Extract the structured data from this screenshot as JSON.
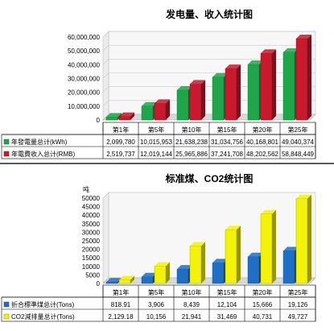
{
  "chart_data": [
    {
      "type": "bar",
      "title": "发电量、收入统计图",
      "categories": [
        "第1年",
        "第5年",
        "第10年",
        "第15年",
        "第20年",
        "第25年"
      ],
      "ylim": [
        0,
        60000000
      ],
      "yticks": [
        "0",
        "10,000,000",
        "20,000,000",
        "30,000,000",
        "40,000,000",
        "50,000,000",
        "60,000,000"
      ],
      "grid": true,
      "legend": "table-left",
      "series": [
        {
          "name": "年發電量总计(kWh)",
          "color": "#1fa64a",
          "values": [
            2099780,
            10015953,
            21638238,
            31034756,
            40168801,
            49040374
          ],
          "labels": [
            "2,099,780",
            "10,015,953",
            "21,638,238",
            "31,034,756",
            "40,168,801",
            "49,040,374"
          ]
        },
        {
          "name": "年電費收入总计(RMB)",
          "color": "#c8192e",
          "values": [
            2519737,
            12019144,
            25965886,
            37241708,
            48202562,
            58848449
          ],
          "labels": [
            "2,519,737",
            "12,019,144",
            "25,965,886",
            "37,241,708",
            "48,202,562",
            "58,848,449"
          ]
        }
      ]
    },
    {
      "type": "bar",
      "title": "标准煤、CO2统计图",
      "ylabel": "吨",
      "categories": [
        "第1年",
        "第5年",
        "第10年",
        "第15年",
        "第20年",
        "第25年"
      ],
      "ylim": [
        0,
        50000
      ],
      "yticks": [
        "0",
        "5000",
        "10000",
        "15000",
        "20000",
        "25000",
        "30000",
        "35000",
        "40000",
        "45000",
        "50000"
      ],
      "grid": false,
      "legend": "table-left",
      "series": [
        {
          "name": "折合標準煤总计(Tons)",
          "color": "#1f6fc6",
          "values": [
            818.91,
            3906,
            8439,
            12104,
            15666,
            19126
          ],
          "labels": [
            "818.91",
            "3,906",
            "8,439",
            "12,104",
            "15,666",
            "19,126"
          ]
        },
        {
          "name": "CO2減排量总计(Tons)",
          "color": "#f2f20a",
          "values": [
            2129.18,
            10156,
            21941,
            31469,
            40731,
            49727
          ],
          "labels": [
            "2,129.18",
            "10,156",
            "21,941",
            "31,469",
            "40,731",
            "49,727"
          ]
        }
      ]
    }
  ]
}
